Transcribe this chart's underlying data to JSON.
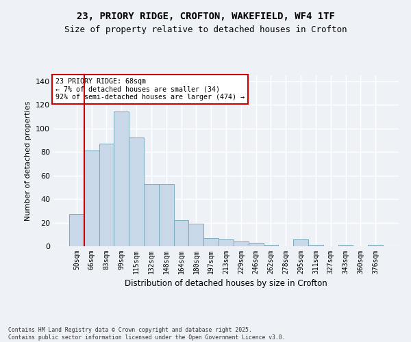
{
  "title_line1": "23, PRIORY RIDGE, CROFTON, WAKEFIELD, WF4 1TF",
  "title_line2": "Size of property relative to detached houses in Crofton",
  "xlabel": "Distribution of detached houses by size in Crofton",
  "ylabel": "Number of detached properties",
  "bar_color": "#c8d8e8",
  "bar_edge_color": "#7aaabb",
  "categories": [
    "50sqm",
    "66sqm",
    "83sqm",
    "99sqm",
    "115sqm",
    "132sqm",
    "148sqm",
    "164sqm",
    "180sqm",
    "197sqm",
    "213sqm",
    "229sqm",
    "246sqm",
    "262sqm",
    "278sqm",
    "295sqm",
    "311sqm",
    "327sqm",
    "343sqm",
    "360sqm",
    "376sqm"
  ],
  "values": [
    27,
    81,
    87,
    114,
    92,
    53,
    53,
    22,
    19,
    7,
    6,
    4,
    3,
    1,
    0,
    6,
    1,
    0,
    1,
    0,
    1
  ],
  "ylim": [
    0,
    145
  ],
  "yticks": [
    0,
    20,
    40,
    60,
    80,
    100,
    120,
    140
  ],
  "vline_index": 1,
  "vline_color": "#cc0000",
  "annotation_text": "23 PRIORY RIDGE: 68sqm\n← 7% of detached houses are smaller (34)\n92% of semi-detached houses are larger (474) →",
  "annotation_box_color": "#cc0000",
  "footer_text": "Contains HM Land Registry data © Crown copyright and database right 2025.\nContains public sector information licensed under the Open Government Licence v3.0.",
  "background_color": "#eef2f7",
  "plot_background": "#eef2f7",
  "grid_color": "#ffffff"
}
